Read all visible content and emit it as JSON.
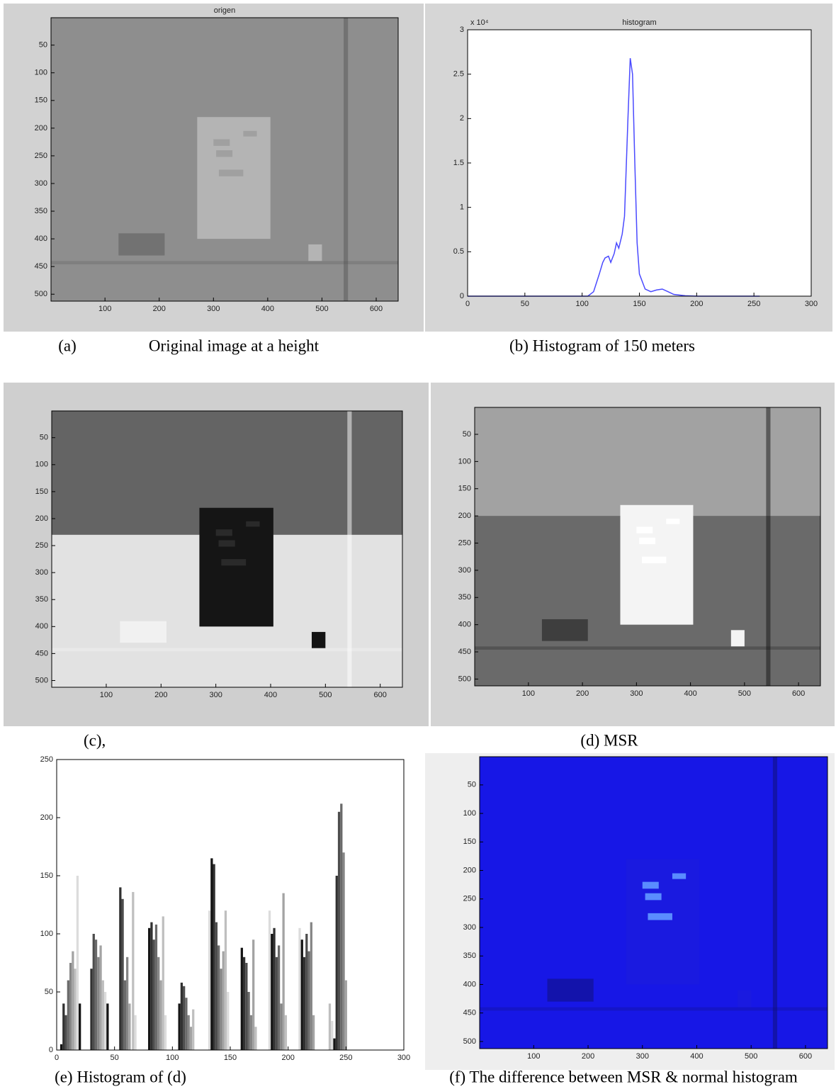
{
  "chart_data": [
    {
      "type": "image",
      "title": "origen",
      "caption_label": "(a)",
      "caption": "Original image at a height",
      "xlim": [
        0.5,
        640.5
      ],
      "ylim": [
        0.5,
        512.5
      ],
      "y_reversed": true,
      "xticks": [
        100,
        200,
        300,
        400,
        500,
        600
      ],
      "yticks": [
        50,
        100,
        150,
        200,
        250,
        300,
        350,
        400,
        450,
        500
      ]
    },
    {
      "type": "line",
      "title": "histogram",
      "caption": "(b) Histogram of 150 meters",
      "axis_multiplier": "x 10⁴",
      "x": [
        0,
        50,
        100,
        105,
        110,
        115,
        118,
        120,
        123,
        125,
        128,
        130,
        132,
        135,
        137,
        140,
        142,
        144,
        146,
        148,
        150,
        155,
        160,
        165,
        170,
        175,
        180,
        190,
        200,
        220,
        250,
        255
      ],
      "values": [
        0,
        0,
        0,
        0,
        500,
        2500,
        3800,
        4300,
        4500,
        3800,
        4800,
        6000,
        5400,
        7000,
        9000,
        20000,
        26800,
        25000,
        15000,
        6000,
        2500,
        800,
        500,
        700,
        800,
        500,
        200,
        50,
        0,
        0,
        0,
        0
      ],
      "color": "#4a4aff",
      "xlim": [
        0,
        300
      ],
      "ylim": [
        0,
        30000
      ],
      "xticks": [
        0,
        50,
        100,
        150,
        200,
        250,
        300
      ],
      "yticks": [
        0,
        {
          "value": 5000,
          "label": "0.5"
        },
        {
          "value": 10000,
          "label": "1"
        },
        {
          "value": 15000,
          "label": "1.5"
        },
        {
          "value": 20000,
          "label": "2"
        },
        {
          "value": 25000,
          "label": "2.5"
        },
        {
          "value": 30000,
          "label": "3"
        }
      ]
    },
    {
      "type": "image",
      "caption": "(c),",
      "xlim": [
        0.5,
        640.5
      ],
      "ylim": [
        0.5,
        512.5
      ],
      "y_reversed": true,
      "xticks": [
        100,
        200,
        300,
        400,
        500,
        600
      ],
      "yticks": [
        50,
        100,
        150,
        200,
        250,
        300,
        350,
        400,
        450,
        500
      ]
    },
    {
      "type": "image",
      "caption": "(d) MSR",
      "xlim": [
        0.5,
        640.5
      ],
      "ylim": [
        0.5,
        512.5
      ],
      "y_reversed": true,
      "xticks": [
        100,
        200,
        300,
        400,
        500,
        600
      ],
      "yticks": [
        50,
        100,
        150,
        200,
        250,
        300,
        350,
        400,
        450,
        500
      ]
    },
    {
      "type": "bar",
      "caption": "(e) Histogram of (d)",
      "x": [
        4,
        6,
        8,
        10,
        12,
        14,
        16,
        18,
        20,
        30,
        32,
        34,
        36,
        38,
        40,
        42,
        44,
        55,
        57,
        59,
        61,
        63,
        66,
        68,
        80,
        82,
        84,
        86,
        88,
        90,
        92,
        94,
        106,
        108,
        110,
        112,
        114,
        116,
        118,
        132,
        134,
        136,
        138,
        140,
        142,
        144,
        146,
        148,
        160,
        162,
        164,
        166,
        168,
        170,
        172,
        184,
        186,
        188,
        190,
        192,
        194,
        196,
        198,
        210,
        212,
        214,
        216,
        218,
        220,
        222,
        236,
        238,
        240,
        242,
        244,
        246,
        248,
        250
      ],
      "values": [
        5,
        40,
        30,
        60,
        75,
        85,
        70,
        150,
        40,
        70,
        100,
        95,
        80,
        90,
        60,
        50,
        40,
        140,
        130,
        60,
        80,
        40,
        136,
        30,
        105,
        110,
        95,
        108,
        80,
        60,
        115,
        30,
        40,
        58,
        55,
        45,
        30,
        20,
        35,
        120,
        165,
        160,
        110,
        90,
        70,
        85,
        120,
        50,
        88,
        80,
        75,
        50,
        30,
        95,
        20,
        120,
        100,
        105,
        80,
        90,
        40,
        135,
        30,
        105,
        95,
        80,
        100,
        85,
        110,
        30,
        40,
        25,
        10,
        150,
        205,
        212,
        170,
        60
      ],
      "xlim": [
        0,
        300
      ],
      "ylim": [
        0,
        250
      ],
      "xticks": [
        0,
        50,
        100,
        150,
        200,
        250,
        300
      ],
      "yticks": [
        0,
        50,
        100,
        150,
        200,
        250
      ]
    },
    {
      "type": "image",
      "caption": "(f) The difference between MSR & normal histogram",
      "xlim": [
        0.5,
        640.5
      ],
      "ylim": [
        0.5,
        512.5
      ],
      "y_reversed": true,
      "xticks": [
        100,
        200,
        300,
        400,
        500,
        600
      ],
      "yticks": [
        50,
        100,
        150,
        200,
        250,
        300,
        350,
        400,
        450,
        500
      ]
    }
  ]
}
